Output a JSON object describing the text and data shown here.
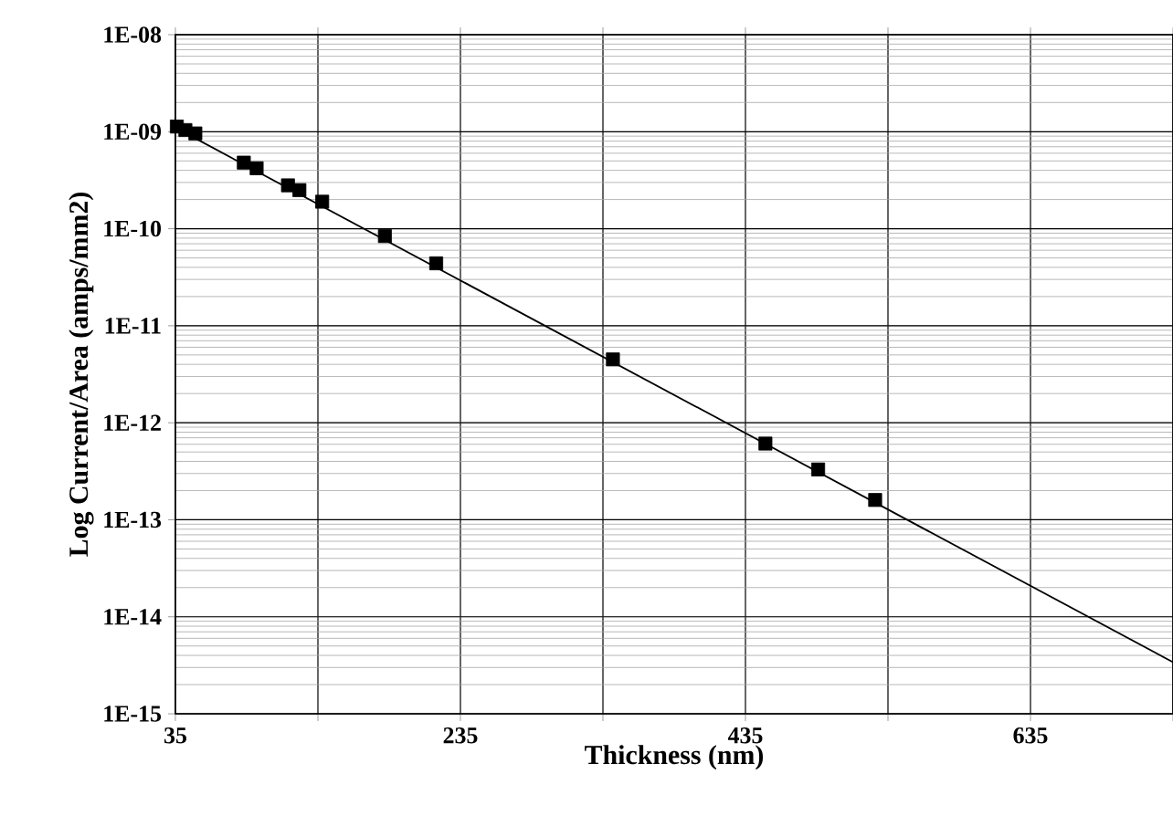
{
  "chart_data": {
    "type": "scatter",
    "xlabel": "Thickness (nm)",
    "ylabel": "Log Current/Area (amps/mm2)",
    "log": "y",
    "grid": true,
    "marker": "square",
    "xlim": [
      35,
      735
    ],
    "xticks": [
      35,
      {
        "value": 135,
        "label": null
      },
      235,
      {
        "value": 335,
        "label": null
      },
      435,
      {
        "value": 535,
        "label": null
      },
      635,
      {
        "value": 735,
        "label": null
      }
    ],
    "ylim": [
      1e-15,
      1e-08
    ],
    "yticks": [
      {
        "value": 1e-15,
        "label": "1E-15"
      },
      {
        "value": 1e-14,
        "label": "1E-14"
      },
      {
        "value": 1e-13,
        "label": "1E-13"
      },
      {
        "value": 1e-12,
        "label": "1E-12"
      },
      {
        "value": 1e-11,
        "label": "1E-11"
      },
      {
        "value": 1e-10,
        "label": "1E-10"
      },
      {
        "value": 1e-09,
        "label": "1E-09"
      },
      {
        "value": 1e-08,
        "label": "1E-08"
      }
    ],
    "series": [
      {
        "color": "#000000",
        "x": [
          36,
          42,
          49,
          83,
          92,
          114,
          122,
          138,
          182,
          218,
          342,
          449,
          486,
          526
        ],
        "values": [
          1.13e-09,
          1.04e-09,
          9.6e-10,
          4.8e-10,
          4.2e-10,
          2.8e-10,
          2.5e-10,
          1.9e-10,
          8.4e-11,
          4.4e-11,
          4.5e-12,
          6.1e-13,
          3.3e-13,
          1.6e-13
        ]
      },
      {
        "type": "line",
        "color": "#000000",
        "marker": "none",
        "line_style": "solid",
        "x": [
          35,
          735
        ],
        "values": [
          1.1e-09,
          3.4e-15
        ]
      }
    ]
  }
}
